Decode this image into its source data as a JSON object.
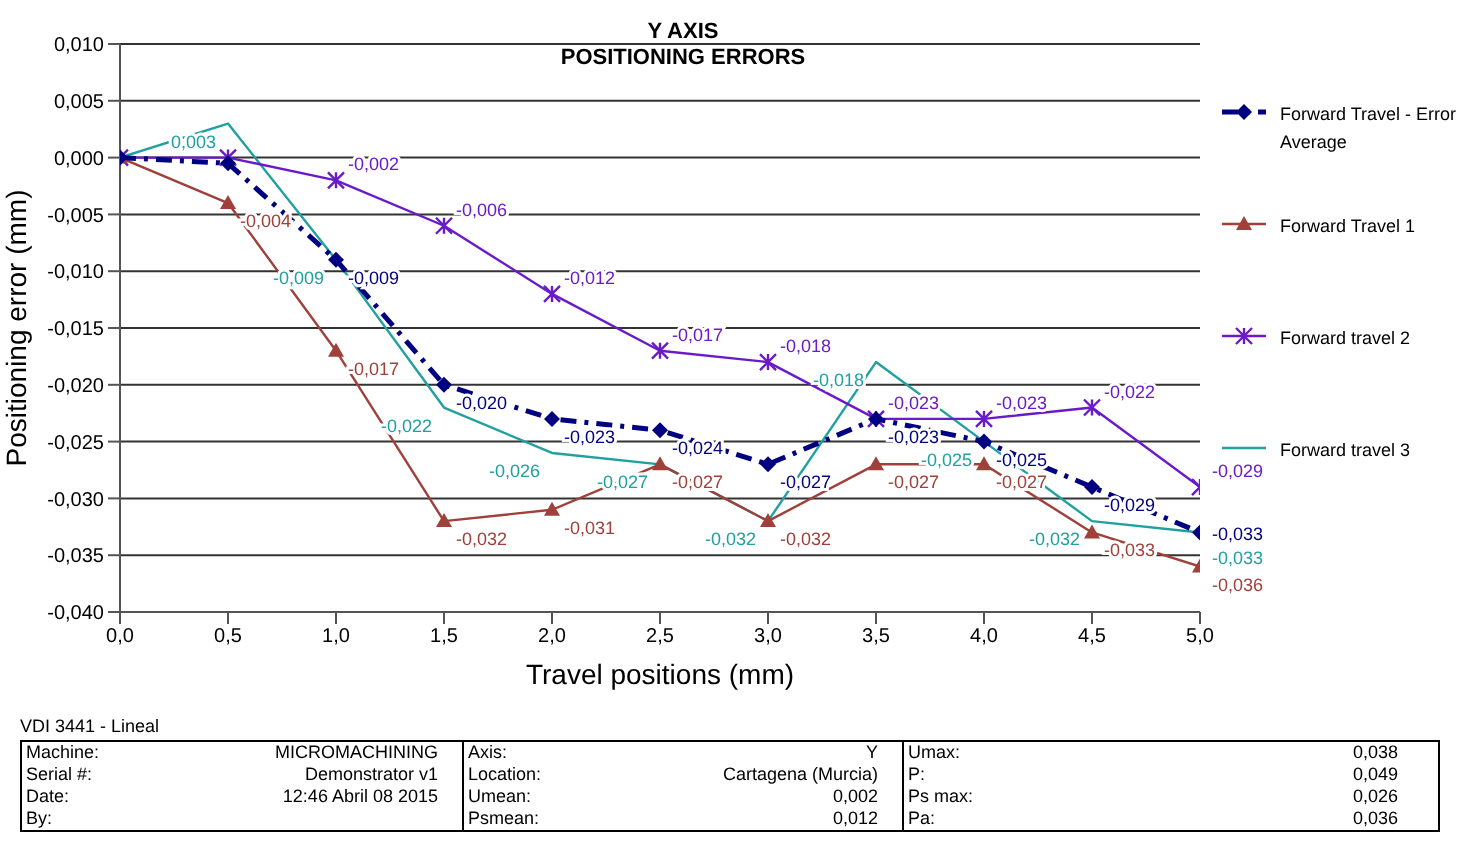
{
  "chart_data": {
    "type": "line",
    "title": "Y AXIS",
    "subtitle": "POSITIONING ERRORS",
    "xlabel": "Travel positions (mm)",
    "ylabel": "Positioning  error (mm)",
    "x": [
      0,
      0.5,
      1,
      1.5,
      2,
      2.5,
      3,
      3.5,
      4,
      4.5,
      5
    ],
    "xlim": [
      0,
      5
    ],
    "xticks": [
      {
        "value": 0,
        "label": "0,0"
      },
      {
        "value": 0.5,
        "label": "0,5"
      },
      {
        "value": 1,
        "label": "1,0"
      },
      {
        "value": 1.5,
        "label": "1,5"
      },
      {
        "value": 2,
        "label": "2,0"
      },
      {
        "value": 2.5,
        "label": "2,5"
      },
      {
        "value": 3,
        "label": "3,0"
      },
      {
        "value": 3.5,
        "label": "3,5"
      },
      {
        "value": 4,
        "label": "4,0"
      },
      {
        "value": 4.5,
        "label": "4,5"
      },
      {
        "value": 5,
        "label": "5,0"
      }
    ],
    "ylim": [
      -0.04,
      0.01
    ],
    "yticks": [
      {
        "value": -0.04,
        "label": "-0,040"
      },
      {
        "value": -0.035,
        "label": "-0,035"
      },
      {
        "value": -0.03,
        "label": "-0,030"
      },
      {
        "value": -0.025,
        "label": "-0,025"
      },
      {
        "value": -0.02,
        "label": "-0,020"
      },
      {
        "value": -0.015,
        "label": "-0,015"
      },
      {
        "value": -0.01,
        "label": "-0,010"
      },
      {
        "value": -0.005,
        "label": "-0,005"
      },
      {
        "value": 0,
        "label": "0,000"
      },
      {
        "value": 0.005,
        "label": "0,005"
      },
      {
        "value": 0.01,
        "label": "0,010"
      }
    ],
    "grid": "y",
    "legend": "right",
    "series": [
      {
        "name": "Forward Travel - Error Average",
        "color": "#000080",
        "marker": "diamond",
        "line_style": "dashed",
        "values": [
          0,
          -0.0005,
          -0.009,
          -0.02,
          -0.023,
          -0.024,
          -0.027,
          -0.023,
          -0.025,
          -0.029,
          -0.033
        ],
        "value_labels": [
          null,
          null,
          "-0,009",
          "-0,020",
          "-0,023",
          "-0,024",
          "-0,027",
          "-0,023",
          "-0,025",
          "-0,029",
          "-0,033"
        ]
      },
      {
        "name": "Forward Travel 1",
        "color": "#a0403a",
        "marker": "triangle",
        "line_style": "solid",
        "values": [
          0,
          -0.004,
          -0.017,
          -0.032,
          -0.031,
          -0.027,
          -0.032,
          -0.027,
          -0.027,
          -0.033,
          -0.036
        ],
        "value_labels": [
          null,
          "-0,004",
          "-0,017",
          "-0,032",
          "-0,031",
          "-0,027",
          "-0,032",
          "-0,027",
          "-0,027",
          "-0,033",
          "-0,036"
        ]
      },
      {
        "name": "Forward travel 2",
        "color": "#6a1ac8",
        "marker": "cross",
        "line_style": "solid",
        "values": [
          0,
          0,
          -0.002,
          -0.006,
          -0.012,
          -0.017,
          -0.018,
          -0.023,
          -0.023,
          -0.022,
          -0.029
        ],
        "value_labels": [
          null,
          null,
          "-0,002",
          "-0,006",
          "-0,012",
          "-0,017",
          "-0,018",
          "-0,023",
          "-0,023",
          "-0,022",
          "-0,029"
        ]
      },
      {
        "name": "Forward travel 3",
        "color": "#20a0a0",
        "marker": "none",
        "line_style": "solid",
        "values": [
          0,
          0.003,
          -0.009,
          -0.022,
          -0.026,
          -0.027,
          -0.032,
          -0.018,
          -0.025,
          -0.032,
          -0.033
        ],
        "value_labels": [
          null,
          "0,003",
          "-0,009",
          "-0,022",
          "-0,026",
          "-0,027",
          "-0,032",
          "-0,018",
          "-0,025",
          "-0,032",
          "-0,033"
        ]
      }
    ],
    "annotations": [
      "VDI 3441 - Lineal",
      "Machine:",
      "MICROMACHINING",
      "Axis:",
      "Y",
      "Umax:",
      "0,038",
      "Serial #:",
      "Demonstrator v1",
      "Location:",
      "Cartagena (Murcia)",
      "P:",
      "0,049",
      "Date:",
      "12:46 Abril 08 2015",
      "Umean:",
      "0,002",
      "Ps max:",
      "0,026",
      "By:",
      "Psmean:",
      "0,012",
      "Pa:",
      "0,036"
    ]
  }
}
